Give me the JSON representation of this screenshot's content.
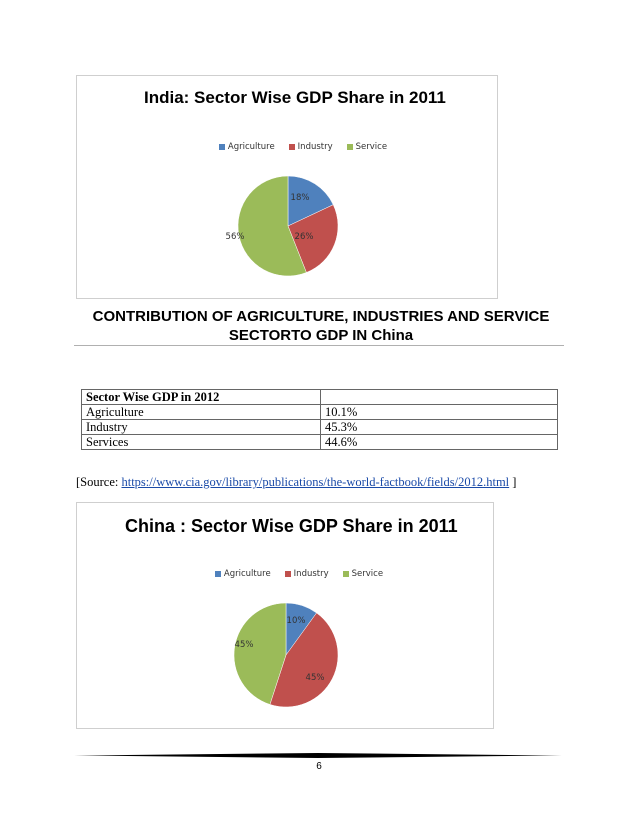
{
  "colors": {
    "agriculture": "#4F81BD",
    "industry": "#C0504D",
    "service": "#9BBB59"
  },
  "chart_data": [
    {
      "type": "pie",
      "title": "India: Sector Wise GDP Share in 2011",
      "categories": [
        "Agriculture",
        "Industry",
        "Service"
      ],
      "values": [
        18,
        26,
        56
      ],
      "labels": [
        "18%",
        "26%",
        "56%"
      ],
      "legend": "top"
    },
    {
      "type": "pie",
      "title": "China : Sector Wise GDP Share in 2011",
      "categories": [
        "Agriculture",
        "Industry",
        "Service"
      ],
      "values": [
        10,
        45,
        45
      ],
      "labels": [
        "10%",
        "45%",
        "45%"
      ],
      "legend": "top"
    }
  ],
  "heading": {
    "line1": "CONTRIBUTION OF AGRICULTURE, INDUSTRIES AND SERVICE",
    "line2": "SECTORTO GDP IN China"
  },
  "table": {
    "header": "Sector Wise GDP in 2012",
    "rows": [
      {
        "sector": "Agriculture",
        "value": "10.1%"
      },
      {
        "sector": "Industry",
        "value": "45.3%"
      },
      {
        "sector": "Services",
        "value": "44.6%"
      }
    ]
  },
  "source": {
    "prefix": "[Source: ",
    "link": "https://www.cia.gov/library/publications/the-world-factbook/fields/2012.html",
    "suffix": " ]"
  },
  "page_number": "6"
}
